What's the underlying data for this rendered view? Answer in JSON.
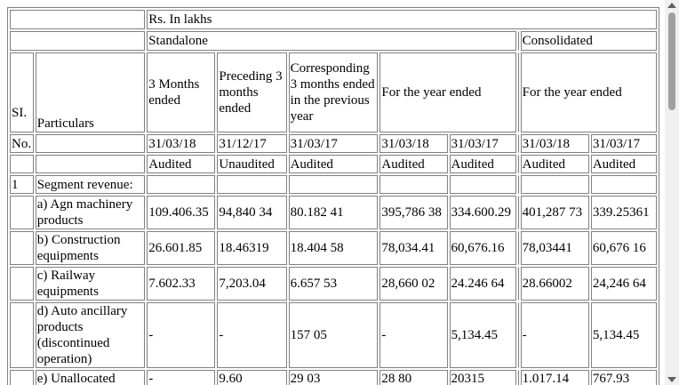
{
  "table": {
    "unit": "Rs. In lakhs",
    "groups": [
      "Standalone",
      "Consolidated"
    ],
    "sl_label": "SI.",
    "no_label": "No.",
    "particulars_label": "Particulars",
    "period_headers": [
      "3 Months ended",
      "Preceding 3 months ended",
      "Corresponding 3 months ended in the previous year",
      "For the year ended",
      "For the year ended"
    ],
    "dates": [
      "31/03/18",
      "31/12/17",
      "31/03/17",
      "31/03/18",
      "31/03/17",
      "31/03/18",
      "31/03/17"
    ],
    "audit": [
      "Audited",
      "Unaudited",
      "Audited",
      "Audited",
      "Audited",
      "Audited",
      "Audited"
    ],
    "rows": [
      {
        "sl": "1",
        "particulars": "Segment revenue:"
      },
      {
        "particulars": "a) Agn machinery products",
        "values": [
          "109.406.35",
          "94,840 34",
          "80.182 41",
          "395,786 38",
          "334.600.29",
          "401,287 73",
          "339.25361"
        ]
      },
      {
        "particulars": "b) Construction equipments",
        "values": [
          "26.601.85",
          "18.46319",
          "18.404 58",
          "78,034.41",
          "60,676.16",
          "78,03441",
          "60,676 16"
        ]
      },
      {
        "particulars": "c) Railway equipments",
        "values": [
          "7.602.33",
          "7,203.04",
          "6.657 53",
          "28,660 02",
          "24.246 64",
          "28.66002",
          "24,246 64"
        ]
      },
      {
        "particulars": "d) Auto ancillary products (discontinued operation)",
        "values": [
          "-",
          "-",
          "157 05",
          "-",
          "5,134.45",
          "-",
          "5,134.45"
        ]
      },
      {
        "particulars": "e) Unallocated",
        "values": [
          "-",
          "9.60",
          "29 03",
          "28 80",
          "20315",
          "1.017.14",
          "767.93"
        ]
      }
    ]
  }
}
